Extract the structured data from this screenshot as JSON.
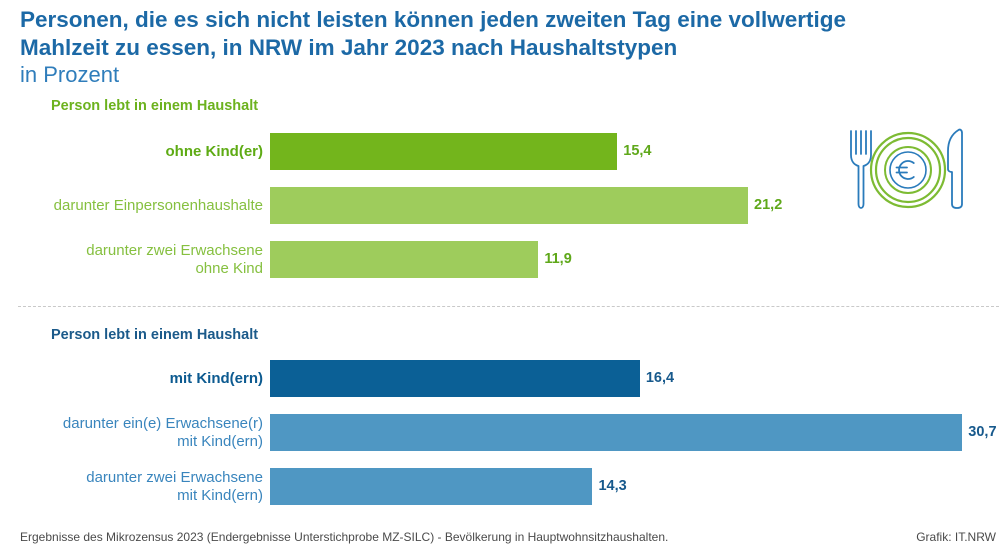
{
  "chart_data": {
    "type": "bar",
    "orientation": "horizontal",
    "title_lines": [
      "Personen, die es sich nicht leisten können jeden zweiten Tag eine vollwertige",
      "Mahlzeit zu essen, in NRW im Jahr 2023 nach Haushaltstypen"
    ],
    "subtitle": "in Prozent",
    "groups": [
      {
        "heading": "Person lebt in einem Haushalt",
        "heading_color": "#6cb21e",
        "bars": [
          {
            "label_lines": [
              "ohne Kind(er)"
            ],
            "value": 15.4,
            "value_label": "15,4",
            "color": "#73b51c"
          },
          {
            "label_lines": [
              "darunter Einpersonenhaushalte"
            ],
            "value": 21.2,
            "value_label": "21,2",
            "color": "#9ecc5c"
          },
          {
            "label_lines": [
              "darunter zwei Erwachsene",
              "ohne Kind"
            ],
            "value": 11.9,
            "value_label": "11,9",
            "color": "#9ecc5c"
          }
        ]
      },
      {
        "heading": "Person lebt in einem Haushalt",
        "heading_color": "#1b5a8a",
        "bars": [
          {
            "label_lines": [
              "mit Kind(ern)"
            ],
            "value": 16.4,
            "value_label": "16,4",
            "color": "#0b6096"
          },
          {
            "label_lines": [
              "darunter ein(e) Erwachsene(r)",
              "mit Kind(ern)"
            ],
            "value": 30.7,
            "value_label": "30,7",
            "color": "#4f97c3"
          },
          {
            "label_lines": [
              "darunter zwei Erwachsene",
              "mit Kind(ern)"
            ],
            "value": 14.3,
            "value_label": "14,3",
            "color": "#4f97c3"
          }
        ]
      }
    ]
  },
  "icon": {
    "name": "plate-cutlery-euro-icon"
  },
  "footer": {
    "source": "Ergebnisse des Mikrozensus 2023 (Endergebnisse Unterstichprobe MZ-SILC) - Bevölkerung in Hauptwohnsitzhaushalten.",
    "credit": "Grafik: IT.NRW"
  }
}
